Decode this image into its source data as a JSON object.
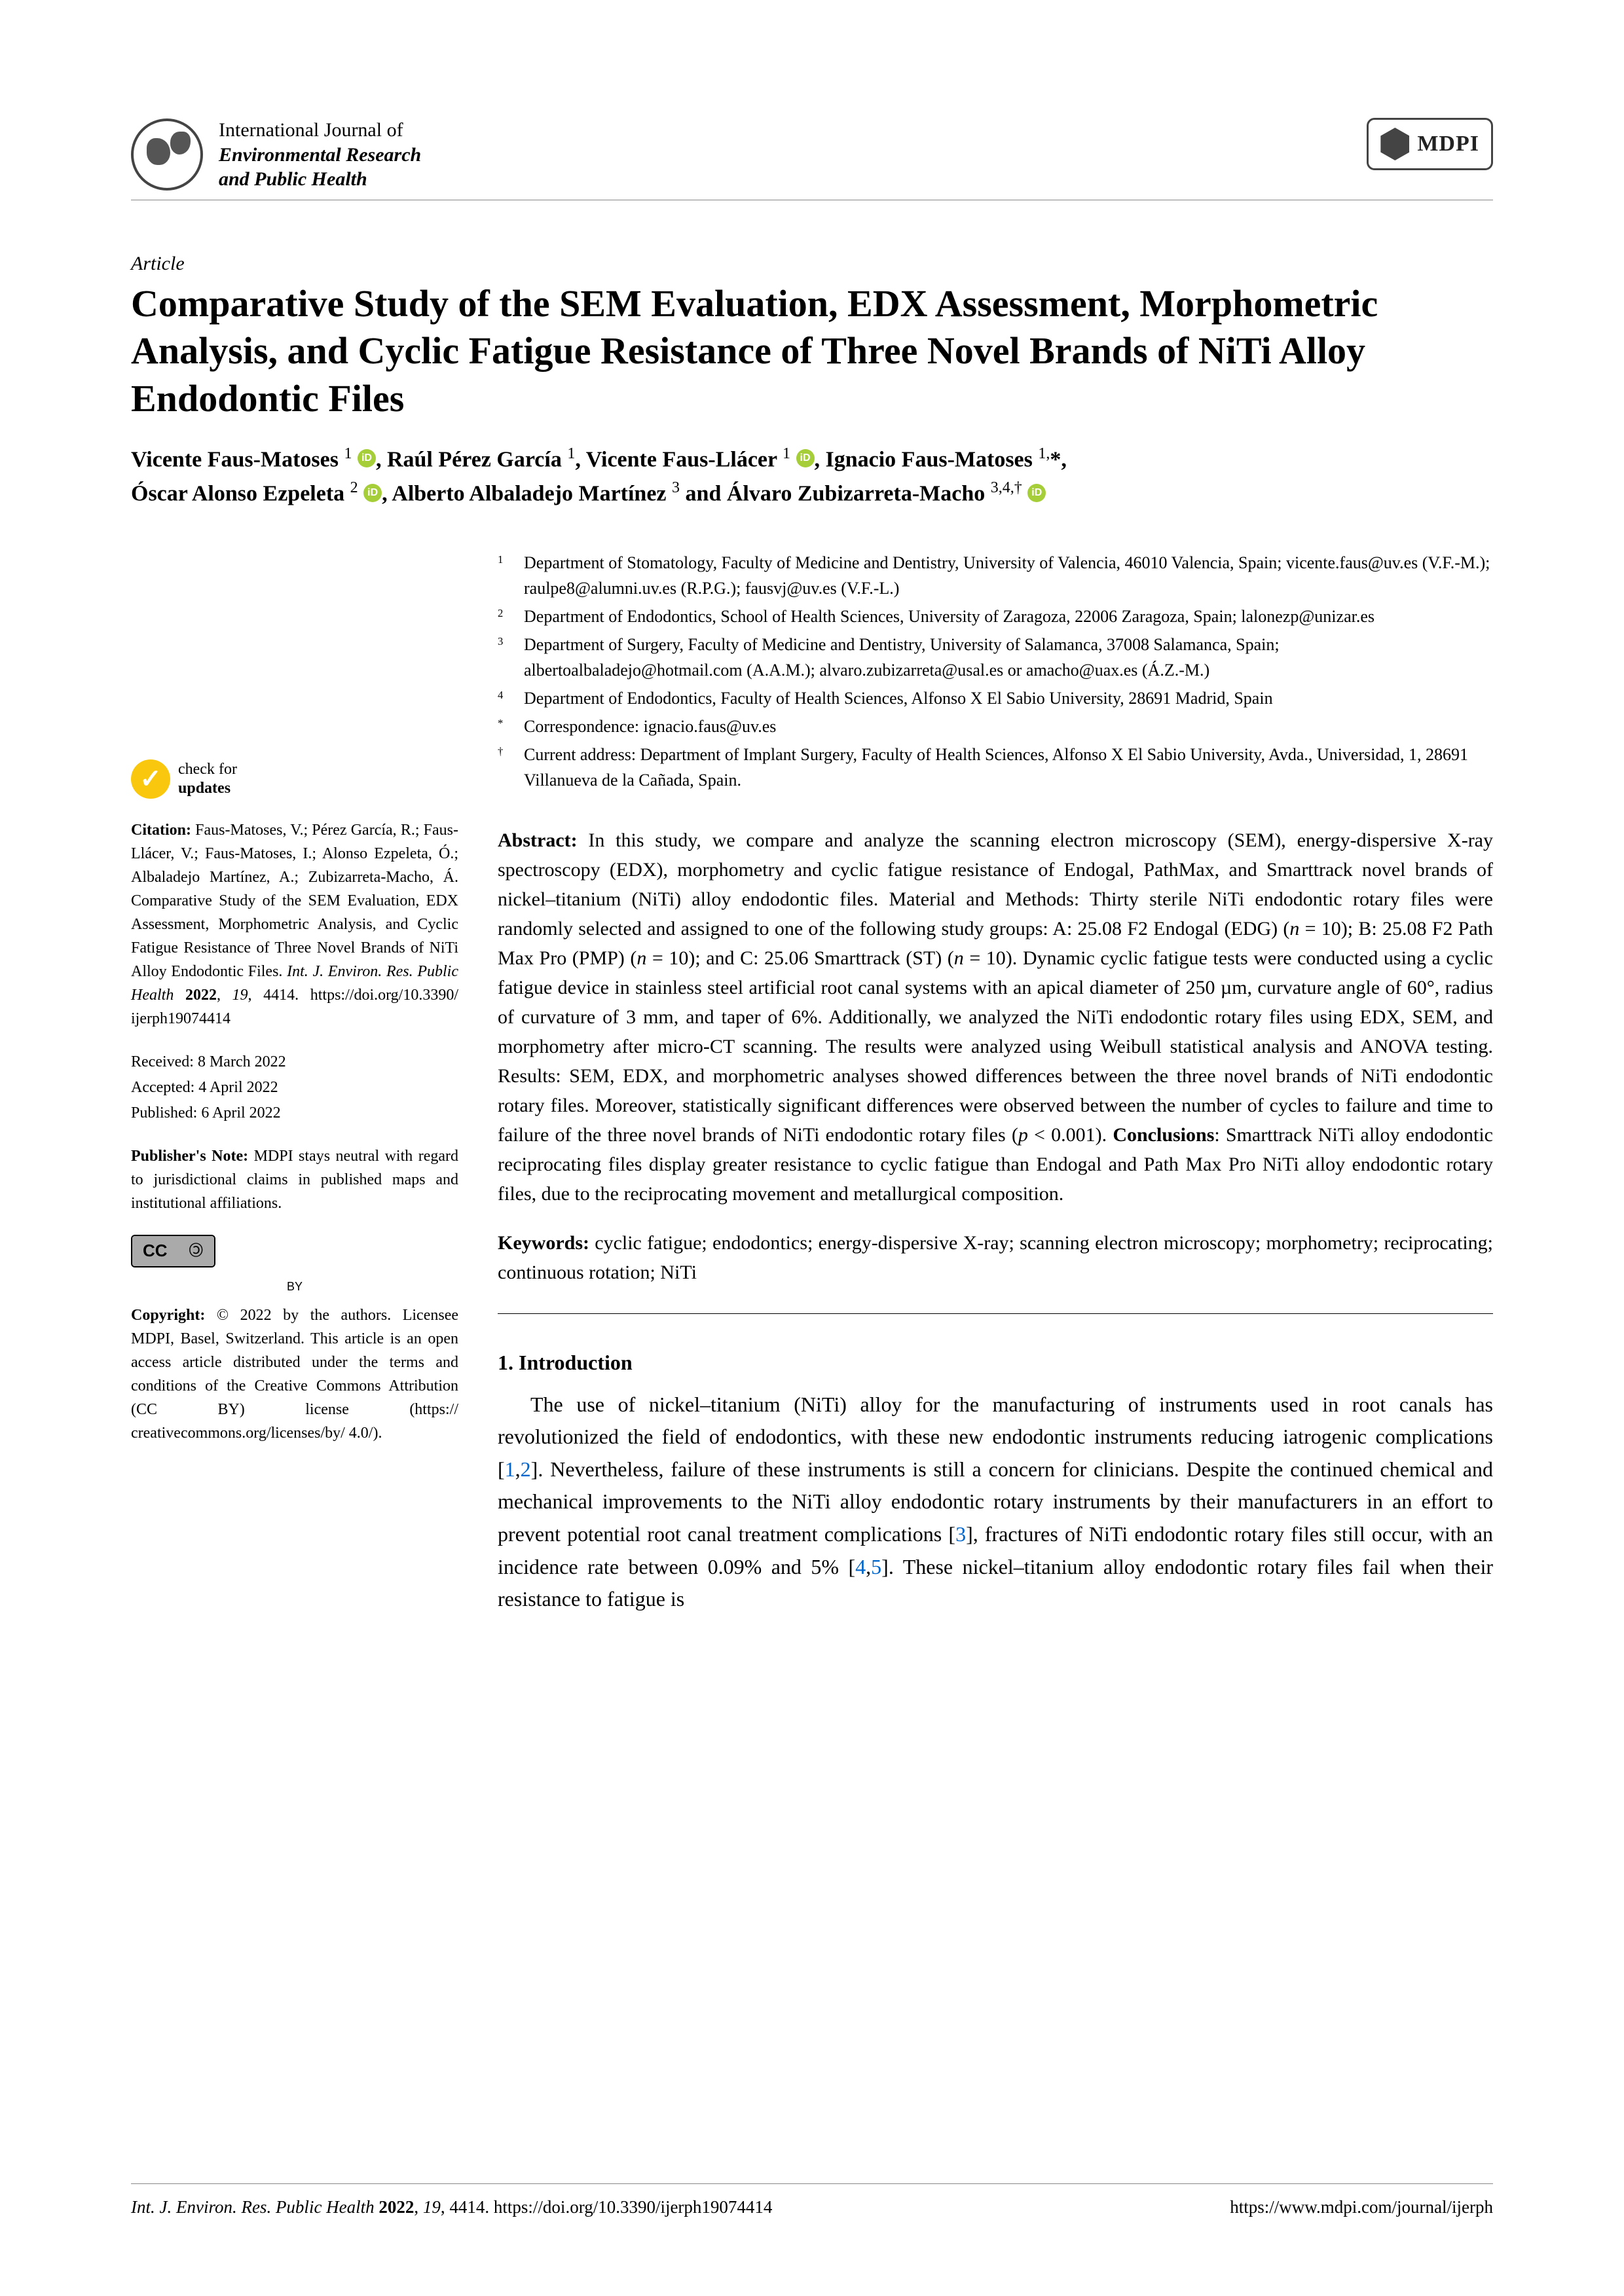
{
  "journal": {
    "line1": "International Journal of",
    "line2": "Environmental Research",
    "line3": "and Public Health"
  },
  "publisher_logo": "MDPI",
  "article_type": "Article",
  "title": "Comparative Study of the SEM Evaluation, EDX Assessment, Morphometric Analysis, and Cyclic Fatigue Resistance of Three Novel Brands of NiTi Alloy Endodontic Files",
  "authors_html": "Vicente Faus-Matoses <span class='sup'>1</span> <span class='orcid'></span>, Raúl Pérez García <span class='sup'>1</span>, Vicente Faus-Llácer <span class='sup'>1</span> <span class='orcid'></span>, Ignacio Faus-Matoses <span class='sup'1,*</span>, Óscar Alonso Ezpeleta <span class='sup'>2</span> <span class='orcid'></span>, Alberto Albaladejo Martínez <span class='sup'>3</span> and Álvaro Zubizarreta-Macho <span class='sup'>3,4,†</span> <span class='orcid'></span>",
  "affiliations": [
    {
      "n": "1",
      "t": "Department of Stomatology, Faculty of Medicine and Dentistry, University of Valencia, 46010 Valencia, Spain; vicente.faus@uv.es (V.F.-M.); raulpe8@alumni.uv.es (R.P.G.); fausvj@uv.es (V.F.-L.)"
    },
    {
      "n": "2",
      "t": "Department of Endodontics, School of Health Sciences, University of Zaragoza, 22006 Zaragoza, Spain; lalonezp@unizar.es"
    },
    {
      "n": "3",
      "t": "Department of Surgery, Faculty of Medicine and Dentistry, University of Salamanca, 37008 Salamanca, Spain; albertoalbaladejo@hotmail.com (A.A.M.); alvaro.zubizarreta@usal.es or amacho@uax.es (Á.Z.-M.)"
    },
    {
      "n": "4",
      "t": "Department of Endodontics, Faculty of Health Sciences, Alfonso X El Sabio University, 28691 Madrid, Spain"
    },
    {
      "n": "*",
      "t": "Correspondence: ignacio.faus@uv.es"
    },
    {
      "n": "†",
      "t": "Current address: Department of Implant Surgery, Faculty of Health Sciences, Alfonso X El Sabio University, Avda., Universidad, 1, 28691 Villanueva de la Cañada, Spain."
    }
  ],
  "check_updates": {
    "l1": "check for",
    "l2": "updates"
  },
  "citation": "Citation: Faus-Matoses, V.; Pérez García, R.; Faus-Llácer, V.; Faus-Matoses, I.; Alonso Ezpeleta, Ó.; Albaladejo Martínez, A.; Zubizarreta-Macho, Á. Comparative Study of the SEM Evaluation, EDX Assessment, Morphometric Analysis, and Cyclic Fatigue Resistance of Three Novel Brands of NiTi Alloy Endodontic Files. Int. J. Environ. Res. Public Health 2022, 19, 4414. https://doi.org/10.3390/ijerph19074414",
  "dates": {
    "received": "Received: 8 March 2022",
    "accepted": "Accepted: 4 April 2022",
    "published": "Published: 6 April 2022"
  },
  "pubnote": "Publisher's Note: MDPI stays neutral with regard to jurisdictional claims in published maps and institutional affiliations.",
  "cc_label": "CC",
  "cc_by": "BY",
  "copyright": "Copyright: © 2022 by the authors. Licensee MDPI, Basel, Switzerland. This article is an open access article distributed under the terms and conditions of the Creative Commons Attribution (CC BY) license (https://creativecommons.org/licenses/by/4.0/).",
  "abstract_label": "Abstract:",
  "abstract": " In this study, we compare and analyze the scanning electron microscopy (SEM), energy-dispersive X-ray spectroscopy (EDX), morphometry and cyclic fatigue resistance of Endogal, PathMax, and Smarttrack novel brands of nickel–titanium (NiTi) alloy endodontic files. Material and Methods: Thirty sterile NiTi endodontic rotary files were randomly selected and assigned to one of the following study groups: A: 25.08 F2 Endogal (EDG) (n = 10); B: 25.08 F2 Path Max Pro (PMP) (n = 10); and C: 25.06 Smarttrack (ST) (n = 10). Dynamic cyclic fatigue tests were conducted using a cyclic fatigue device in stainless steel artificial root canal systems with an apical diameter of 250 µm, curvature angle of 60°, radius of curvature of 3 mm, and taper of 6%. Additionally, we analyzed the NiTi endodontic rotary files using EDX, SEM, and morphometry after micro-CT scanning. The results were analyzed using Weibull statistical analysis and ANOVA testing. Results: SEM, EDX, and morphometric analyses showed differences between the three novel brands of NiTi endodontic rotary files. Moreover, statistically significant differences were observed between the number of cycles to failure and time to failure of the three novel brands of NiTi endodontic rotary files (p < 0.001). Conclusions: Smarttrack NiTi alloy endodontic reciprocating files display greater resistance to cyclic fatigue than Endogal and Path Max Pro NiTi alloy endodontic rotary files, due to the reciprocating movement and metallurgical composition.",
  "keywords_label": "Keywords:",
  "keywords": " cyclic fatigue; endodontics; energy-dispersive X-ray; scanning electron microscopy; morphometry; reciprocating; continuous rotation; NiTi",
  "section1": "1. Introduction",
  "intro": "The use of nickel–titanium (NiTi) alloy for the manufacturing of instruments used in root canals has revolutionized the field of endodontics, with these new endodontic instruments reducing iatrogenic complications [1,2]. Nevertheless, failure of these instruments is still a concern for clinicians. Despite the continued chemical and mechanical improvements to the NiTi alloy endodontic rotary instruments by their manufacturers in an effort to prevent potential root canal treatment complications [3], fractures of NiTi endodontic rotary files still occur, with an incidence rate between 0.09% and 5% [4,5]. These nickel–titanium alloy endodontic rotary files fail when their resistance to fatigue is",
  "footer": {
    "left": "Int. J. Environ. Res. Public Health 2022, 19, 4414. https://doi.org/10.3390/ijerph19074414",
    "right": "https://www.mdpi.com/journal/ijerph"
  },
  "colors": {
    "orcid": "#a6ce39",
    "link": "#0066cc",
    "check": "#f9c80e",
    "rule": "#888888",
    "text": "#000000",
    "bg": "#ffffff"
  }
}
